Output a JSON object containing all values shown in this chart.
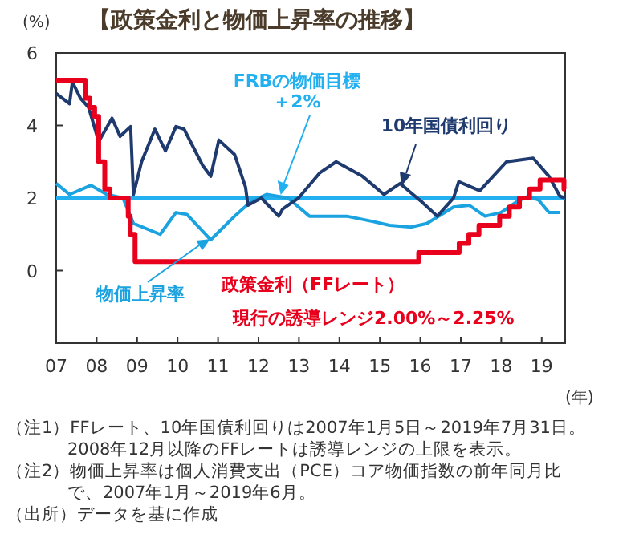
{
  "chart_data": {
    "type": "line",
    "title": "【政策金利と物価上昇率の推移】",
    "ylabel": "(%)",
    "xlabel": "(年)",
    "xlim": [
      2007,
      2019.58
    ],
    "ylim": [
      -2,
      6
    ],
    "xticks": [
      {
        "value": 2007,
        "label": "07"
      },
      {
        "value": 2008,
        "label": "08"
      },
      {
        "value": 2009,
        "label": "09"
      },
      {
        "value": 2010,
        "label": "10"
      },
      {
        "value": 2011,
        "label": "11"
      },
      {
        "value": 2012,
        "label": "12"
      },
      {
        "value": 2013,
        "label": "13"
      },
      {
        "value": 2014,
        "label": "14"
      },
      {
        "value": 2015,
        "label": "15"
      },
      {
        "value": 2016,
        "label": "16"
      },
      {
        "value": 2017,
        "label": "17"
      },
      {
        "value": 2018,
        "label": "18"
      },
      {
        "value": 2019,
        "label": "19"
      }
    ],
    "yticks": [
      0,
      2,
      4,
      6
    ],
    "grid": false,
    "series": [
      {
        "name": "10年国債利回り",
        "color": "#1f3a6e",
        "x": [
          2007.0,
          2007.33,
          2007.4,
          2007.6,
          2007.8,
          2008.05,
          2008.38,
          2008.58,
          2008.84,
          2008.91,
          2009.11,
          2009.44,
          2009.7,
          2009.96,
          2010.16,
          2010.62,
          2010.82,
          2011.02,
          2011.41,
          2011.68,
          2011.74,
          2012.07,
          2012.5,
          2012.6,
          2012.99,
          2013.52,
          2013.92,
          2014.57,
          2015.1,
          2015.5,
          2016.03,
          2016.42,
          2016.82,
          2016.95,
          2017.47,
          2018.13,
          2018.79,
          2019.18,
          2019.45,
          2019.58
        ],
        "values": [
          4.88,
          4.6,
          5.2,
          4.75,
          4.5,
          3.56,
          4.2,
          3.7,
          3.97,
          2.1,
          3.0,
          3.9,
          3.3,
          3.97,
          3.9,
          2.9,
          2.6,
          3.6,
          3.2,
          2.3,
          1.8,
          2.0,
          1.5,
          1.7,
          2.0,
          2.7,
          3.0,
          2.6,
          2.1,
          2.4,
          1.9,
          1.5,
          2.0,
          2.45,
          2.2,
          3.0,
          3.1,
          2.6,
          2.05,
          2.0
        ]
      },
      {
        "name": "物価上昇率",
        "color": "#1aa3e0",
        "x": [
          2007.0,
          2007.33,
          2007.86,
          2008.25,
          2008.65,
          2008.91,
          2009.57,
          2009.96,
          2010.23,
          2010.82,
          2011.41,
          2011.81,
          2012.2,
          2012.73,
          2013.26,
          2014.18,
          2014.84,
          2015.24,
          2015.76,
          2016.16,
          2016.82,
          2017.21,
          2017.6,
          2017.99,
          2018.39,
          2018.66,
          2018.92,
          2019.18,
          2019.45
        ],
        "values": [
          2.4,
          2.1,
          2.35,
          2.1,
          2.0,
          1.3,
          1.0,
          1.6,
          1.55,
          0.85,
          1.5,
          1.9,
          2.1,
          2.0,
          1.5,
          1.5,
          1.35,
          1.25,
          1.2,
          1.3,
          1.75,
          1.8,
          1.5,
          1.6,
          1.9,
          2.05,
          1.95,
          1.6,
          1.6
        ]
      },
      {
        "name": "政策金利（FFレート）",
        "type": "step",
        "color": "#e8001c",
        "x": [
          2007.0,
          2007.72,
          2007.83,
          2007.95,
          2008.05,
          2008.2,
          2008.33,
          2008.78,
          2008.83,
          2008.95,
          2015.96,
          2016.96,
          2017.2,
          2017.45,
          2017.96,
          2018.2,
          2018.45,
          2018.7,
          2018.96,
          2019.55,
          2019.58
        ],
        "values": [
          5.25,
          4.75,
          4.5,
          4.25,
          3.0,
          2.25,
          2.0,
          1.5,
          1.0,
          0.25,
          0.5,
          0.75,
          1.0,
          1.25,
          1.5,
          1.75,
          2.0,
          2.25,
          2.5,
          2.25,
          2.25
        ]
      }
    ],
    "ref_lines": [
      {
        "axis": "y",
        "value": 2,
        "label": "FRBの物価目標＋2%",
        "color": "#22b0f0"
      }
    ],
    "annotations": [
      "現行の誘導レンジ2.00%～2.25%",
      "（注1）FFレート、10年国債利回りは2007年1月5日～2019年7月31日。",
      "2008年12月以降のFFレートは誘導レンジの上限を表示。",
      "（注2）物価上昇率は個人消費支出（PCE）コア物価指数の前年同月比",
      "で、2007年1月～2019年6月。",
      "（出所）データを基に作成"
    ]
  }
}
